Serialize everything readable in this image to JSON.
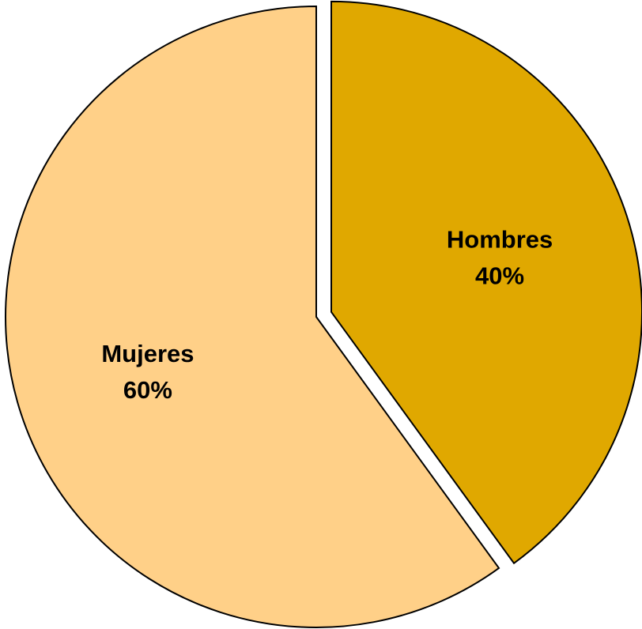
{
  "chart_data": {
    "type": "pie",
    "title": "",
    "categories": [
      "Hombres",
      "Mujeres"
    ],
    "values": [
      40,
      60
    ],
    "value_labels": [
      "40%",
      "60%"
    ],
    "colors": [
      "#E0A800",
      "#FFD088"
    ],
    "start_angle_deg": 0,
    "direction": "clockwise",
    "exploded": [
      "Hombres"
    ],
    "legend": "none"
  }
}
